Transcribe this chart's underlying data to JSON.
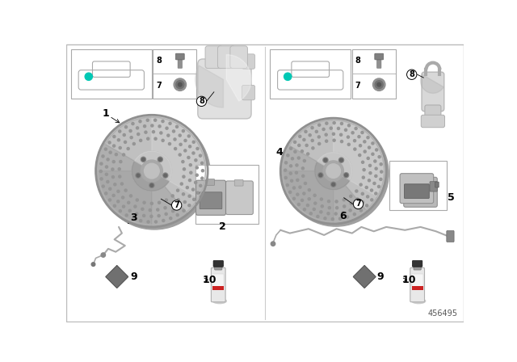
{
  "bg_color": "#ffffff",
  "teal_color": "#00c8b4",
  "footer_text": "456495",
  "disc_face_color": "#b8b8b8",
  "disc_edge_color": "#a0a0a0",
  "disc_hub_color": "#c8c8c8",
  "disc_hole_color": "#909090",
  "disc_shadow": "#989898",
  "wire_color": "#aaaaaa",
  "pad_back_color": "#b0b0b0",
  "pad_friction_color": "#888888",
  "shim_color": "#666666",
  "can_body_color": "#e0e0e0",
  "can_cap_color": "#222222",
  "can_label_color": "#ffffff",
  "can_red_color": "#cc2222",
  "divider_color": "#cccccc",
  "label_circled": [
    "7",
    "8"
  ],
  "left_labels": [
    "1",
    "2",
    "3",
    "7",
    "8",
    "9",
    "10"
  ],
  "right_labels": [
    "4",
    "5",
    "6",
    "7",
    "8",
    "9",
    "10"
  ]
}
